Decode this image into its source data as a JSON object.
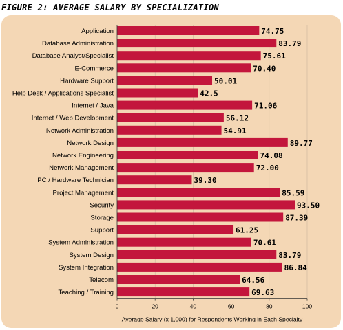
{
  "figure_title": "FIGURE 2: AVERAGE SALARY BY SPECIALIZATION",
  "colors": {
    "panel_background": "#f4d7b5",
    "bar_fill": "#c3163c",
    "gridline": "#c9b59c",
    "axis": "#333333",
    "text": "#000000"
  },
  "chart_data": {
    "type": "bar",
    "orientation": "horizontal",
    "title": "FIGURE 2: AVERAGE SALARY BY SPECIALIZATION",
    "xlabel": "Average Salary (x 1,000) for Respondents Working in Each Specialty",
    "ylabel": "",
    "xlim": [
      0,
      100
    ],
    "xticks": [
      0,
      20,
      40,
      60,
      80,
      100
    ],
    "grid": true,
    "categories": [
      "Application",
      "Database Administration",
      "Database Analyst/Specialist",
      "E-Commerce",
      "Hardware Support",
      "Help Desk / Applications Specialist",
      "Internet / Java",
      "Internet / Web Development",
      "Network Administration",
      "Network Design",
      "Network Engineering",
      "Network Management",
      "PC / Hardware Technician",
      "Project Management",
      "Security",
      "Storage",
      "Support",
      "System Administration",
      "System Design",
      "System Integration",
      "Telecom",
      "Teaching / Training"
    ],
    "values": [
      74.75,
      83.79,
      75.61,
      70.4,
      50.01,
      42.5,
      71.06,
      56.12,
      54.91,
      89.77,
      74.08,
      72.0,
      39.3,
      85.59,
      93.5,
      87.39,
      61.25,
      70.61,
      83.79,
      86.84,
      64.56,
      69.63
    ],
    "value_labels": [
      "74.75",
      "83.79",
      "75.61",
      "70.40",
      "50.01",
      "42.5",
      "71.06",
      "56.12",
      "54.91",
      "89.77",
      "74.08",
      "72.00",
      "39.30",
      "85.59",
      "93.50",
      "87.39",
      "61.25",
      "70.61",
      "83.79",
      "86.84",
      "64.56",
      "69.63"
    ]
  }
}
